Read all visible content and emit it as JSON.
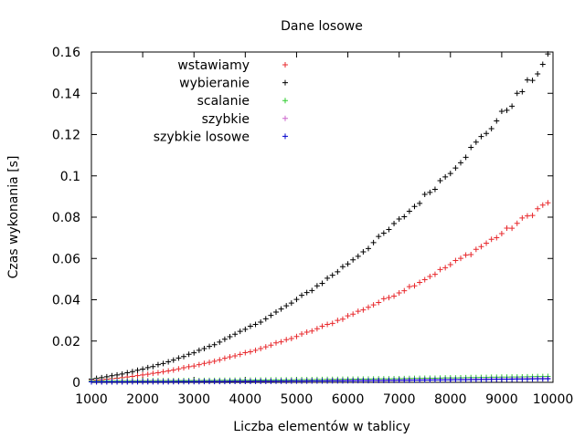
{
  "chart_data": {
    "type": "scatter",
    "title": "Dane losowe",
    "xlabel": "Liczba elementów w tablicy",
    "ylabel": "Czas wykonania [s]",
    "xlim": [
      1000,
      10000
    ],
    "ylim": [
      0,
      0.16
    ],
    "xticks": [
      1000,
      2000,
      3000,
      4000,
      5000,
      6000,
      7000,
      8000,
      9000,
      10000
    ],
    "yticks": [
      0,
      0.02,
      0.04,
      0.06,
      0.08,
      0.1,
      0.12,
      0.14,
      0.16
    ],
    "ytick_labels": [
      "0",
      "0.02",
      "0.04",
      "0.06",
      "0.08",
      "0.1",
      "0.12",
      "0.14",
      "0.16"
    ],
    "grid": false,
    "legend_position": "top-left",
    "x": {
      "start": 1000,
      "step": 100,
      "count": 90
    },
    "series": [
      {
        "name": "wstawiamy",
        "color": "#e8282c",
        "coef": 8.9e-10,
        "offset": 0,
        "values": []
      },
      {
        "name": "wybieranie",
        "color": "#000000",
        "coef": 1.6e-09,
        "offset": 0,
        "values": []
      },
      {
        "name": "scalanie",
        "color": "#2ecc2e",
        "coef": 2.25e-11,
        "offset": 0.0007,
        "values": []
      },
      {
        "name": "szybkie",
        "color": "#cc66cc",
        "coef": 1.68e-11,
        "offset": 0.0003,
        "values": []
      },
      {
        "name": "szybkie losowe",
        "color": "#0000cc",
        "coef": 1.58e-11,
        "offset": 0.0002,
        "values": []
      }
    ]
  }
}
